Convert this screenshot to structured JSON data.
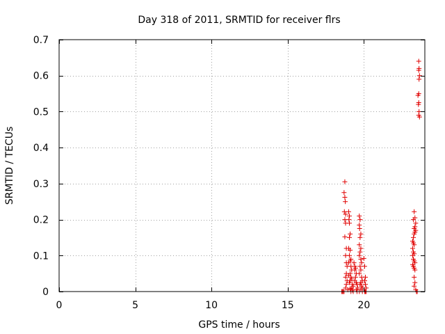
{
  "chart_data": {
    "type": "scatter",
    "title": "Day 318 of 2011, SRMTID for receiver flrs",
    "xlabel": "GPS time / hours",
    "ylabel": "SRMTID / TECUs",
    "xlim": [
      0,
      24
    ],
    "ylim": [
      0,
      0.7
    ],
    "grid": true,
    "marker": "+",
    "x_ticks": [
      0,
      5,
      10,
      15,
      20
    ],
    "x_tick_labels": [
      "0",
      "5",
      "10",
      "15",
      "20"
    ],
    "y_ticks": [
      0,
      0.1,
      0.2,
      0.3,
      0.4,
      0.5,
      0.6,
      0.7
    ],
    "y_tick_labels": [
      "0",
      "0.1",
      "0.2",
      "0.3",
      "0.4",
      "0.5",
      "0.6",
      "0.7"
    ],
    "series": [
      {
        "name": "flrs",
        "color": "#e00000",
        "points": [
          [
            18.55,
            0.0
          ],
          [
            18.6,
            0.0
          ],
          [
            18.65,
            0.0
          ],
          [
            18.7,
            0.0
          ],
          [
            18.75,
            0.305
          ],
          [
            18.7,
            0.275
          ],
          [
            18.75,
            0.262
          ],
          [
            18.78,
            0.25
          ],
          [
            18.72,
            0.222
          ],
          [
            18.8,
            0.215
          ],
          [
            18.75,
            0.2
          ],
          [
            18.8,
            0.19
          ],
          [
            18.75,
            0.152
          ],
          [
            18.85,
            0.12
          ],
          [
            18.8,
            0.1
          ],
          [
            18.85,
            0.08
          ],
          [
            18.9,
            0.07
          ],
          [
            18.85,
            0.05
          ],
          [
            18.8,
            0.04
          ],
          [
            18.9,
            0.03
          ],
          [
            18.85,
            0.02
          ],
          [
            18.8,
            0.01
          ],
          [
            18.95,
            0.005
          ],
          [
            19.0,
            0.222
          ],
          [
            19.05,
            0.21
          ],
          [
            19.02,
            0.2
          ],
          [
            19.05,
            0.19
          ],
          [
            19.1,
            0.16
          ],
          [
            19.05,
            0.15
          ],
          [
            19.0,
            0.12
          ],
          [
            19.1,
            0.115
          ],
          [
            19.05,
            0.1
          ],
          [
            19.15,
            0.09
          ],
          [
            19.1,
            0.085
          ],
          [
            19.0,
            0.08
          ],
          [
            19.15,
            0.07
          ],
          [
            19.2,
            0.06
          ],
          [
            19.1,
            0.05
          ],
          [
            19.0,
            0.045
          ],
          [
            19.15,
            0.04
          ],
          [
            19.2,
            0.035
          ],
          [
            19.1,
            0.03
          ],
          [
            19.05,
            0.025
          ],
          [
            19.25,
            0.02
          ],
          [
            19.3,
            0.015
          ],
          [
            19.2,
            0.01
          ],
          [
            19.1,
            0.008
          ],
          [
            19.25,
            0.004
          ],
          [
            19.3,
            0.0
          ],
          [
            19.15,
            0.0
          ],
          [
            19.35,
            0.08
          ],
          [
            19.4,
            0.07
          ],
          [
            19.45,
            0.065
          ],
          [
            19.4,
            0.06
          ],
          [
            19.5,
            0.05
          ],
          [
            19.45,
            0.04
          ],
          [
            19.4,
            0.03
          ],
          [
            19.5,
            0.025
          ],
          [
            19.55,
            0.02
          ],
          [
            19.6,
            0.01
          ],
          [
            19.5,
            0.005
          ],
          [
            19.55,
            0.0
          ],
          [
            19.7,
            0.21
          ],
          [
            19.75,
            0.2
          ],
          [
            19.7,
            0.185
          ],
          [
            19.72,
            0.175
          ],
          [
            19.8,
            0.16
          ],
          [
            19.75,
            0.15
          ],
          [
            19.7,
            0.13
          ],
          [
            19.8,
            0.12
          ],
          [
            19.75,
            0.11
          ],
          [
            19.7,
            0.1
          ],
          [
            19.8,
            0.09
          ],
          [
            19.85,
            0.08
          ],
          [
            19.75,
            0.07
          ],
          [
            19.8,
            0.06
          ],
          [
            19.7,
            0.05
          ],
          [
            19.85,
            0.04
          ],
          [
            19.9,
            0.03
          ],
          [
            19.8,
            0.025
          ],
          [
            19.75,
            0.02
          ],
          [
            19.85,
            0.015
          ],
          [
            19.9,
            0.01
          ],
          [
            19.8,
            0.005
          ],
          [
            19.7,
            0.0
          ],
          [
            19.9,
            0.0
          ],
          [
            20.0,
            0.092
          ],
          [
            20.05,
            0.07
          ],
          [
            20.1,
            0.04
          ],
          [
            20.05,
            0.03
          ],
          [
            20.1,
            0.02
          ],
          [
            20.15,
            0.01
          ],
          [
            20.05,
            0.0
          ],
          [
            20.1,
            0.0
          ],
          [
            20.15,
            0.0
          ],
          [
            23.3,
            0.222
          ],
          [
            23.35,
            0.205
          ],
          [
            23.25,
            0.2
          ],
          [
            23.4,
            0.19
          ],
          [
            23.35,
            0.18
          ],
          [
            23.3,
            0.175
          ],
          [
            23.4,
            0.17
          ],
          [
            23.35,
            0.165
          ],
          [
            23.3,
            0.16
          ],
          [
            23.25,
            0.15
          ],
          [
            23.2,
            0.14
          ],
          [
            23.25,
            0.135
          ],
          [
            23.3,
            0.13
          ],
          [
            23.2,
            0.12
          ],
          [
            23.25,
            0.11
          ],
          [
            23.3,
            0.105
          ],
          [
            23.2,
            0.1
          ],
          [
            23.25,
            0.09
          ],
          [
            23.3,
            0.085
          ],
          [
            23.35,
            0.08
          ],
          [
            23.2,
            0.075
          ],
          [
            23.25,
            0.07
          ],
          [
            23.3,
            0.065
          ],
          [
            23.35,
            0.06
          ],
          [
            23.3,
            0.04
          ],
          [
            23.35,
            0.025
          ],
          [
            23.3,
            0.015
          ],
          [
            23.4,
            0.005
          ],
          [
            23.45,
            0.0
          ],
          [
            23.5,
            0.0
          ],
          [
            23.6,
            0.64
          ],
          [
            23.62,
            0.62
          ],
          [
            23.6,
            0.615
          ],
          [
            23.65,
            0.6
          ],
          [
            23.62,
            0.59
          ],
          [
            23.6,
            0.55
          ],
          [
            23.55,
            0.545
          ],
          [
            23.6,
            0.525
          ],
          [
            23.58,
            0.52
          ],
          [
            23.62,
            0.5
          ],
          [
            23.6,
            0.49
          ],
          [
            23.65,
            0.485
          ]
        ]
      }
    ]
  }
}
